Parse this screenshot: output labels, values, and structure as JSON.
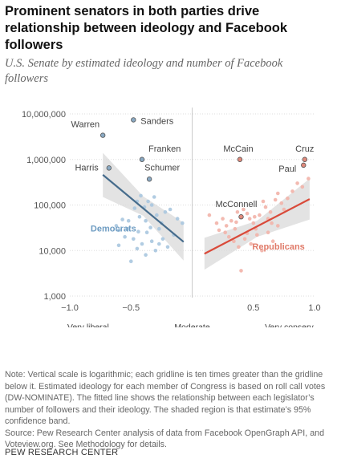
{
  "title": "Prominent senators in both parties drive relationship between ideology and Facebook followers",
  "subtitle": "U.S. Senate by estimated ideology and number of Facebook followers",
  "notes": [
    "Note: Vertical scale is logarithmic; each gridline is ten times greater than the gridline below it. Estimated ideology for each member of Congress is based on roll call votes (DW-NOMINATE). The fitted line shows the relationship between each legislator’s number of followers and their ideology. The shaded region is that estimate’s 95% confidence band.",
    "Source: Pew Research Center analysis of data from Facebook OpenGraph API, and Voteview.org. See Methodology for details."
  ],
  "brand": "PEW RESEARCH CENTER",
  "colors": {
    "democrat": "#a9c6df",
    "democrat_line": "#466c8c",
    "republican": "#f2b3a8",
    "republican_line": "#d94a3a",
    "band": "#d9d9d9",
    "grid": "#dddddd"
  },
  "chart_data": {
    "type": "scatter",
    "x_scale": "linear",
    "y_scale": "log",
    "xlim": [
      -1.0,
      1.0
    ],
    "ylim": [
      1000,
      10000000
    ],
    "x_ticks": [
      -1.0,
      -0.5,
      0,
      0.5,
      1.0
    ],
    "x_tick_labels": [
      "−1.0",
      "−0.5",
      "",
      "0.5",
      "1.0"
    ],
    "y_ticks": [
      1000,
      10000,
      100000,
      1000000,
      10000000
    ],
    "y_tick_labels": [
      "1,000",
      "10,000",
      "100,000",
      "1,000,000",
      "10,000,000"
    ],
    "x_axis_labels": [
      {
        "x": -0.85,
        "text": "Very liberal"
      },
      {
        "x": 0.0,
        "text": "Moderate"
      },
      {
        "x": 0.8,
        "text": "Very conserv."
      }
    ],
    "grid": true,
    "series": [
      {
        "name": "Democrats",
        "points": [
          [
            -0.73,
            3400000
          ],
          [
            -0.48,
            7400000
          ],
          [
            -0.41,
            1000000
          ],
          [
            -0.35,
            370000
          ],
          [
            -0.68,
            650000
          ],
          [
            -0.45,
            120000
          ],
          [
            -0.47,
            85000
          ],
          [
            -0.42,
            160000
          ],
          [
            -0.39,
            90000
          ],
          [
            -0.36,
            120000
          ],
          [
            -0.33,
            100000
          ],
          [
            -0.31,
            150000
          ],
          [
            -0.29,
            60000
          ],
          [
            -0.22,
            70000
          ],
          [
            -0.18,
            80000
          ],
          [
            -0.12,
            50000
          ],
          [
            -0.08,
            40000
          ],
          [
            -0.25,
            40000
          ],
          [
            -0.34,
            32000
          ],
          [
            -0.38,
            45000
          ],
          [
            -0.44,
            26000
          ],
          [
            -0.52,
            45000
          ],
          [
            -0.57,
            48000
          ],
          [
            -0.6,
            28000
          ],
          [
            -0.62,
            35000
          ],
          [
            -0.55,
            20000
          ],
          [
            -0.48,
            18000
          ],
          [
            -0.41,
            14000
          ],
          [
            -0.33,
            16000
          ],
          [
            -0.27,
            14000
          ],
          [
            -0.2,
            12000
          ],
          [
            -0.3,
            10000
          ],
          [
            -0.5,
            5800
          ],
          [
            -0.37,
            25000
          ],
          [
            -0.43,
            55000
          ],
          [
            -0.27,
            30000
          ],
          [
            -0.15,
            22000
          ],
          [
            -0.24,
            18000
          ],
          [
            -0.45,
            11000
          ],
          [
            -0.38,
            8000
          ],
          [
            -0.6,
            13000
          ],
          [
            -0.53,
            30000
          ]
        ],
        "fit": {
          "x": [
            -0.73,
            -0.07
          ],
          "y": [
            460000,
            15500
          ]
        },
        "band": {
          "x": [
            -0.73,
            -0.4,
            -0.07
          ],
          "upper": [
            1400000,
            155000,
            41000
          ],
          "lower": [
            150000,
            58000,
            6000
          ]
        }
      },
      {
        "name": "Republicans",
        "points": [
          [
            0.39,
            1000000
          ],
          [
            0.92,
            1000000
          ],
          [
            0.91,
            750000
          ],
          [
            0.4,
            55000
          ],
          [
            0.14,
            60000
          ],
          [
            0.2,
            40000
          ],
          [
            0.25,
            50000
          ],
          [
            0.28,
            35000
          ],
          [
            0.32,
            45000
          ],
          [
            0.35,
            30000
          ],
          [
            0.37,
            70000
          ],
          [
            0.42,
            80000
          ],
          [
            0.45,
            65000
          ],
          [
            0.47,
            50000
          ],
          [
            0.5,
            40000
          ],
          [
            0.52,
            30000
          ],
          [
            0.55,
            60000
          ],
          [
            0.58,
            120000
          ],
          [
            0.6,
            90000
          ],
          [
            0.62,
            50000
          ],
          [
            0.65,
            40000
          ],
          [
            0.68,
            130000
          ],
          [
            0.7,
            180000
          ],
          [
            0.73,
            110000
          ],
          [
            0.75,
            80000
          ],
          [
            0.78,
            140000
          ],
          [
            0.82,
            200000
          ],
          [
            0.86,
            300000
          ],
          [
            0.9,
            250000
          ],
          [
            0.95,
            380000
          ],
          [
            0.3,
            20000
          ],
          [
            0.34,
            16000
          ],
          [
            0.38,
            12000
          ],
          [
            0.43,
            18000
          ],
          [
            0.48,
            14000
          ],
          [
            0.53,
            22000
          ],
          [
            0.57,
            10000
          ],
          [
            0.4,
            3600
          ],
          [
            0.62,
            25000
          ],
          [
            0.27,
            25000
          ],
          [
            0.45,
            24000
          ],
          [
            0.66,
            16000
          ],
          [
            0.22,
            28000
          ],
          [
            0.36,
            42000
          ],
          [
            0.7,
            35000
          ],
          [
            0.51,
            55000
          ],
          [
            0.64,
            70000
          ]
        ],
        "fit": {
          "x": [
            0.1,
            0.96
          ],
          "y": [
            8500,
            135000
          ]
        },
        "band": {
          "x": [
            0.1,
            0.53,
            0.96
          ],
          "upper": [
            19000,
            45000,
            380000
          ],
          "lower": [
            3800,
            20000,
            48000
          ]
        }
      }
    ],
    "annotations": [
      {
        "text": "Warren",
        "x": -0.73,
        "y": 3400000
      },
      {
        "text": "Sanders",
        "x": -0.48,
        "y": 7400000
      },
      {
        "text": "Franken",
        "x": -0.41,
        "y": 1000000
      },
      {
        "text": "Harris",
        "x": -0.68,
        "y": 650000
      },
      {
        "text": "Schumer",
        "x": -0.35,
        "y": 370000
      },
      {
        "text": "McCain",
        "x": 0.39,
        "y": 1000000
      },
      {
        "text": "Cruz",
        "x": 0.92,
        "y": 1000000
      },
      {
        "text": "Paul",
        "x": 0.91,
        "y": 750000
      },
      {
        "text": "McConnell",
        "x": 0.4,
        "y": 55000
      }
    ],
    "series_labels": [
      {
        "text": "Democrats",
        "series": 0
      },
      {
        "text": "Republicans",
        "series": 1
      }
    ]
  }
}
